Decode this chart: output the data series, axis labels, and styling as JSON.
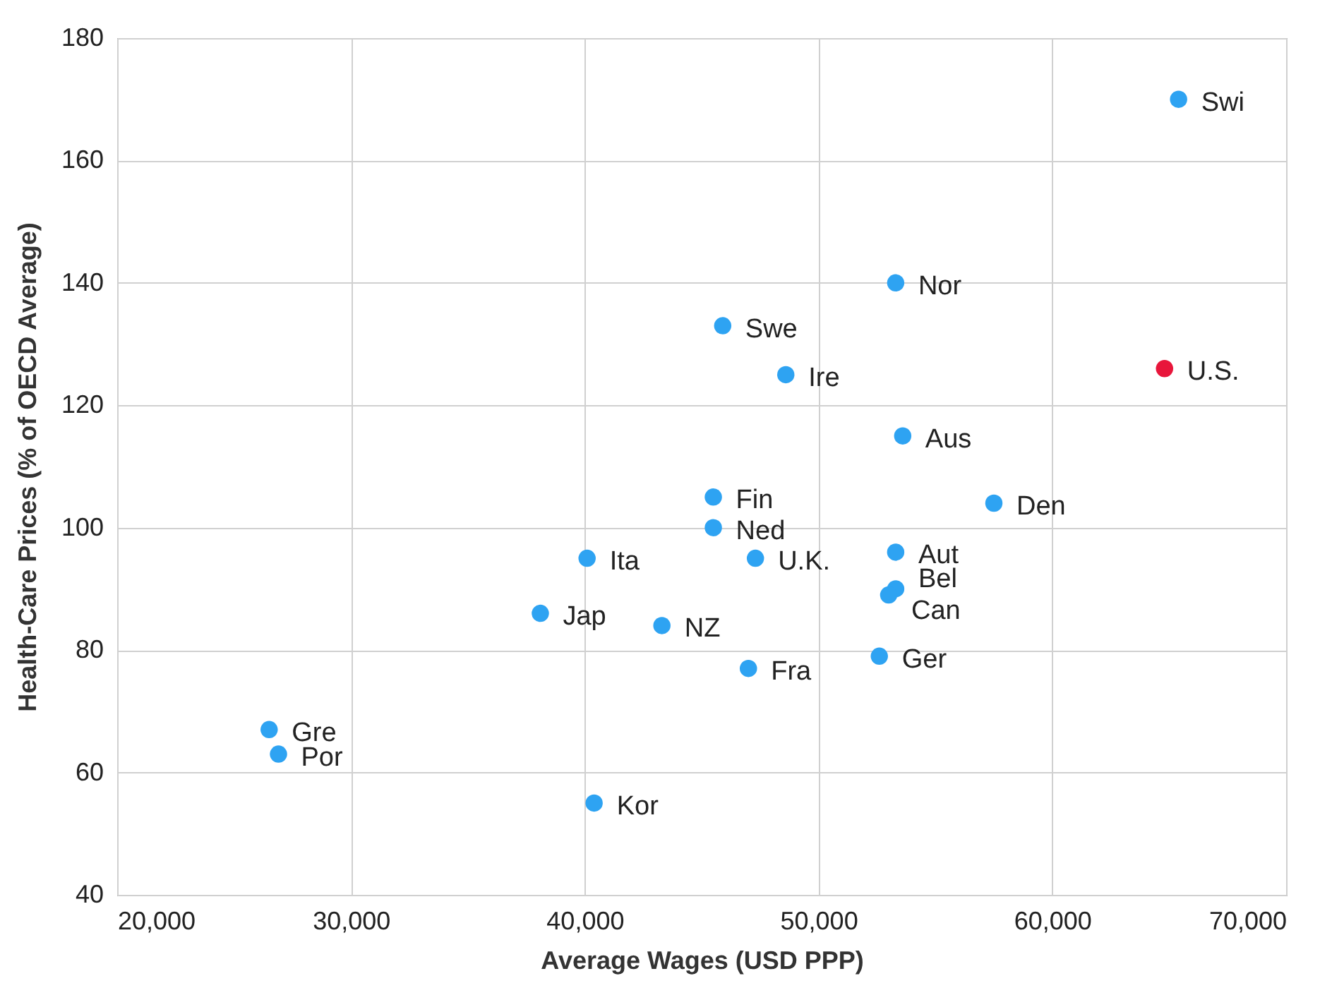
{
  "chart_data": {
    "type": "scatter",
    "xlabel": "Average Wages (USD PPP)",
    "ylabel": "Health-Care Prices (% of  OECD Average)",
    "x": [
      65400,
      64800,
      53300,
      45900,
      48600,
      53600,
      57500,
      45500,
      45500,
      40100,
      47300,
      53300,
      53300,
      53000,
      38100,
      43300,
      52600,
      47000,
      26500,
      26900,
      40400
    ],
    "values": [
      170,
      126,
      140,
      133,
      125,
      115,
      104,
      105,
      100,
      95,
      95,
      96,
      90,
      89,
      86,
      84,
      79,
      77,
      67,
      63,
      55
    ],
    "colors": [
      "#2ea3f2",
      "#e8163b",
      "#2ea3f2",
      "#2ea3f2",
      "#2ea3f2",
      "#2ea3f2",
      "#2ea3f2",
      "#2ea3f2",
      "#2ea3f2",
      "#2ea3f2",
      "#2ea3f2",
      "#2ea3f2",
      "#2ea3f2",
      "#2ea3f2",
      "#2ea3f2",
      "#2ea3f2",
      "#2ea3f2",
      "#2ea3f2",
      "#2ea3f2",
      "#2ea3f2",
      "#2ea3f2"
    ],
    "annotations": [
      {
        "text": "Swi",
        "x": 65400,
        "y": 170
      },
      {
        "text": "U.S.",
        "x": 64800,
        "y": 126
      },
      {
        "text": "Nor",
        "x": 53300,
        "y": 140
      },
      {
        "text": "Swe",
        "x": 45900,
        "y": 133
      },
      {
        "text": "Ire",
        "x": 48600,
        "y": 125
      },
      {
        "text": "Aus",
        "x": 53600,
        "y": 115
      },
      {
        "text": "Den",
        "x": 57500,
        "y": 104
      },
      {
        "text": "Fin",
        "x": 45500,
        "y": 105
      },
      {
        "text": "Ned",
        "x": 45500,
        "y": 100
      },
      {
        "text": "Ita",
        "x": 40100,
        "y": 95
      },
      {
        "text": "U.K.",
        "x": 47300,
        "y": 95
      },
      {
        "text": "Aut",
        "x": 53300,
        "y": 96
      },
      {
        "text": "Bel",
        "x": 53300,
        "y": 90
      },
      {
        "text": "Can",
        "x": 53000,
        "y": 89
      },
      {
        "text": "Jap",
        "x": 38100,
        "y": 86
      },
      {
        "text": "NZ",
        "x": 43300,
        "y": 84
      },
      {
        "text": "Ger",
        "x": 52600,
        "y": 79
      },
      {
        "text": "Fra",
        "x": 47000,
        "y": 77
      },
      {
        "text": "Gre",
        "x": 26500,
        "y": 67
      },
      {
        "text": "Por",
        "x": 26900,
        "y": 63
      },
      {
        "text": "Kor",
        "x": 40400,
        "y": 55
      }
    ],
    "xlim": [
      20000,
      70000
    ],
    "xticks": [
      {
        "value": 20000,
        "label": "20,000"
      },
      {
        "value": 30000,
        "label": "30,000"
      },
      {
        "value": 40000,
        "label": "40,000"
      },
      {
        "value": 50000,
        "label": "50,000"
      },
      {
        "value": 60000,
        "label": "60,000"
      },
      {
        "value": 70000,
        "label": "70,000"
      }
    ],
    "ylim": [
      40,
      180
    ],
    "yticks": [
      40,
      60,
      80,
      100,
      120,
      140,
      160,
      180
    ],
    "grid": true,
    "marker": "circle"
  }
}
